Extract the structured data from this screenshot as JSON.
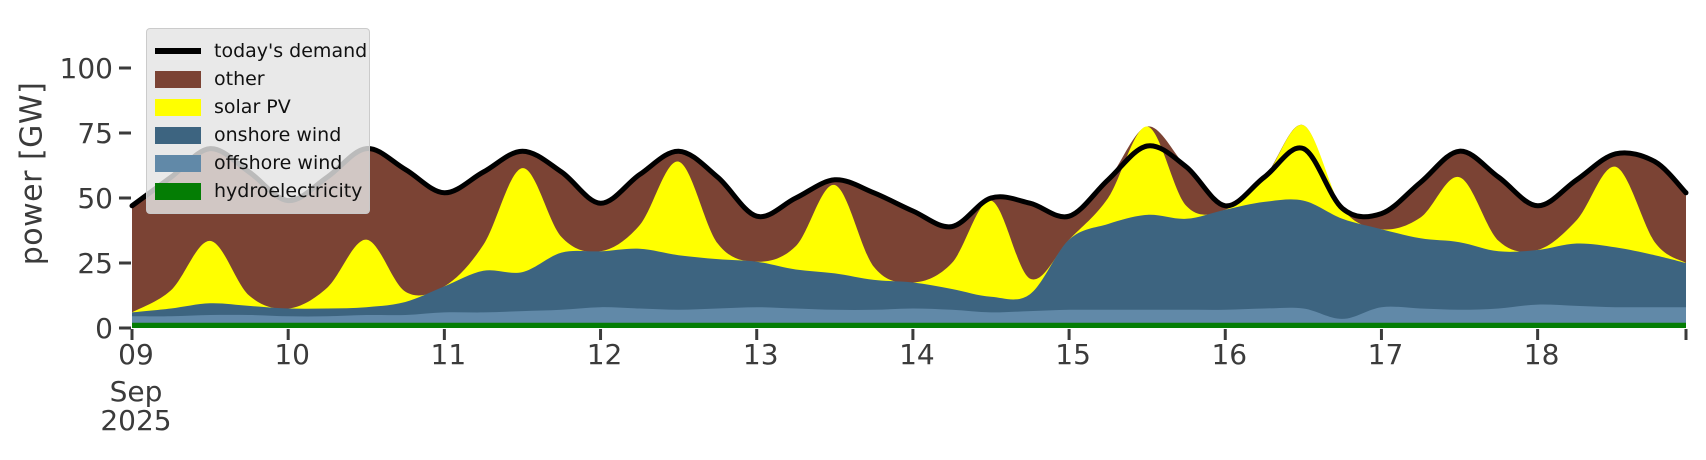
{
  "figure": {
    "background": "#ffffff",
    "text_color": "#3b3b3b",
    "demand_line_color": "#000000",
    "demand_line_width": 5
  },
  "legend": {
    "items": [
      {
        "label": "today's demand",
        "color": "#000000",
        "type": "line"
      },
      {
        "label": "other",
        "color": "#7B4334",
        "type": "patch"
      },
      {
        "label": "solar PV",
        "color": "#FFFF00",
        "type": "patch"
      },
      {
        "label": "onshore wind",
        "color": "#3D6480",
        "type": "patch"
      },
      {
        "label": "offshore wind",
        "color": "#6189A8",
        "type": "patch"
      },
      {
        "label": "hydroelectricity",
        "color": "#047D04",
        "type": "patch"
      }
    ]
  },
  "chart_data": {
    "type": "area",
    "stacked": true,
    "title": "",
    "xlabel": "",
    "ylabel": "power [GW]",
    "x_unit": "day of month, September 2025",
    "xlim": [
      9,
      18.95
    ],
    "ylim": [
      0,
      120
    ],
    "grid": false,
    "legend_position": "upper left",
    "x": [
      9.0,
      9.25,
      9.5,
      9.75,
      10.0,
      10.25,
      10.5,
      10.75,
      11.0,
      11.25,
      11.5,
      11.75,
      12.0,
      12.25,
      12.5,
      12.75,
      13.0,
      13.25,
      13.5,
      13.75,
      14.0,
      14.25,
      14.5,
      14.75,
      15.0,
      15.25,
      15.5,
      15.75,
      16.0,
      16.25,
      16.5,
      16.75,
      17.0,
      17.25,
      17.5,
      17.75,
      18.0,
      18.25,
      18.5,
      18.75,
      18.95
    ],
    "series": [
      {
        "name": "hydroelectricity",
        "color": "#047D04",
        "values": [
          2,
          2,
          2,
          2,
          2,
          2,
          2,
          2,
          2,
          2,
          2,
          2,
          2,
          2,
          2,
          2,
          2,
          2,
          2,
          2,
          2,
          2,
          2,
          2,
          2,
          2,
          2,
          2,
          2,
          2,
          2,
          2,
          2,
          2,
          2,
          2,
          2,
          2,
          2,
          2,
          2
        ]
      },
      {
        "name": "offshore wind",
        "color": "#6189A8",
        "values": [
          2.5,
          2.5,
          3,
          3,
          2.5,
          2.5,
          3,
          3,
          4,
          4,
          4.5,
          5,
          6,
          5.5,
          5,
          5.5,
          6,
          5.5,
          5,
          5,
          5.5,
          5,
          4,
          4.5,
          5,
          5,
          5,
          5,
          5,
          5.5,
          5.5,
          1.5,
          6,
          5.5,
          5,
          5.5,
          7,
          6.5,
          6,
          6,
          6
        ]
      },
      {
        "name": "onshore wind",
        "color": "#3D6480",
        "values": [
          1.5,
          3,
          4.5,
          3.5,
          3,
          3,
          3,
          5,
          10,
          16,
          15,
          22,
          21.5,
          23,
          21,
          19,
          17.5,
          15,
          14,
          11.5,
          10,
          8,
          6,
          6.5,
          27,
          33,
          36.5,
          35,
          38.5,
          41,
          41.5,
          38.5,
          30,
          27,
          26,
          22,
          21,
          24,
          23,
          20,
          17
        ]
      },
      {
        "name": "solar PV",
        "color": "#FFFF00",
        "values": [
          0,
          7,
          24,
          4,
          0,
          8,
          26,
          4,
          0,
          10,
          40,
          6,
          0,
          9,
          36,
          6,
          0,
          9,
          34,
          5,
          0,
          10,
          37,
          6,
          0,
          10,
          34,
          5,
          0,
          9,
          29,
          4,
          0,
          8,
          25,
          4,
          0,
          9,
          31,
          5,
          0
        ]
      },
      {
        "name": "other",
        "color": "#7B4334",
        "values": [
          41,
          43.5,
          35.5,
          47.5,
          41.5,
          42.5,
          35,
          47,
          36,
          28,
          6.5,
          25,
          18.5,
          19.5,
          4,
          25.5,
          17.5,
          18.5,
          2,
          28.5,
          27.5,
          14,
          1,
          29,
          9,
          7,
          0,
          15,
          1.5,
          0.5,
          0,
          0,
          6,
          13.5,
          10,
          24.5,
          17,
          15.5,
          5,
          31,
          27
        ]
      }
    ],
    "line": {
      "name": "today's demand",
      "color": "#000000",
      "values": [
        47,
        58,
        69,
        60,
        49,
        58,
        69,
        61,
        52,
        60,
        68,
        60,
        48,
        59,
        68,
        58,
        43,
        50,
        57,
        52,
        45,
        39,
        50,
        48,
        43,
        57,
        70,
        62,
        47,
        58,
        69,
        46,
        44,
        56,
        68,
        58,
        47,
        57,
        67,
        64,
        52
      ]
    },
    "yticks": [
      0,
      25,
      50,
      75,
      100
    ],
    "xticks": [
      {
        "t": 9,
        "label": "09",
        "sub": [
          "Sep",
          "2025"
        ]
      },
      {
        "t": 10,
        "label": "10"
      },
      {
        "t": 11,
        "label": "11"
      },
      {
        "t": 12,
        "label": "12"
      },
      {
        "t": 13,
        "label": "13"
      },
      {
        "t": 14,
        "label": "14"
      },
      {
        "t": 15,
        "label": "15"
      },
      {
        "t": 16,
        "label": "16"
      },
      {
        "t": 17,
        "label": "17"
      },
      {
        "t": 18,
        "label": "18"
      },
      {
        "t": 18.95,
        "label": ""
      }
    ]
  }
}
